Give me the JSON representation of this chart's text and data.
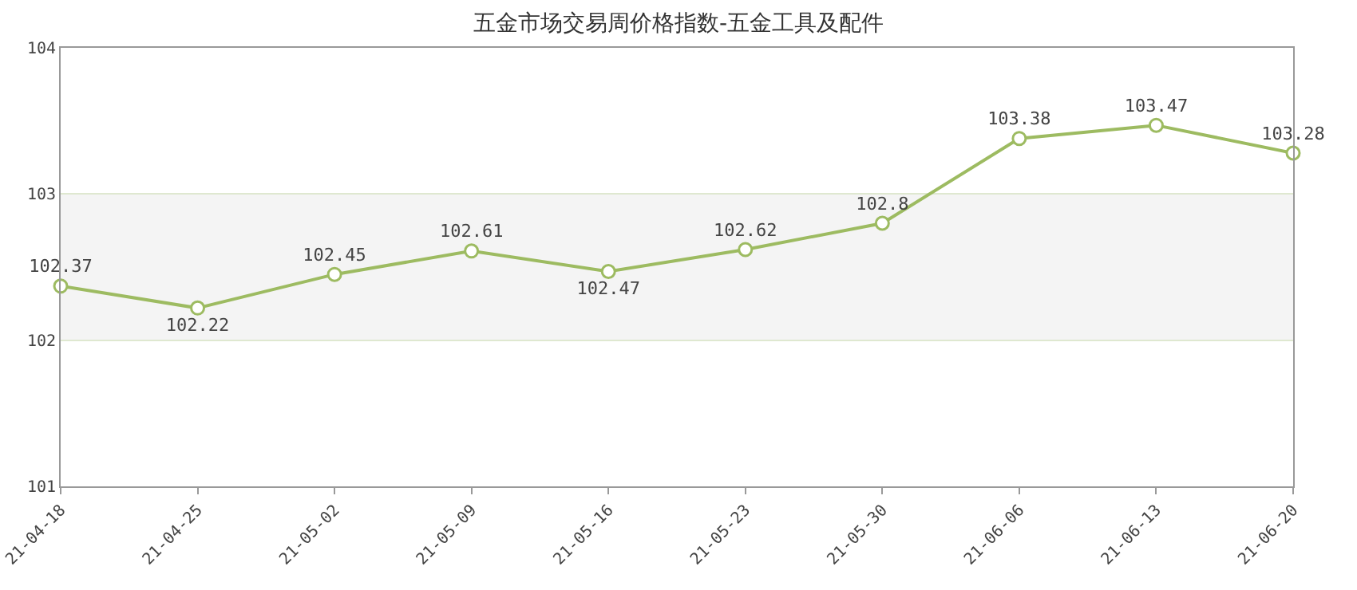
{
  "chart_data": {
    "type": "line",
    "title": "五金市场交易周价格指数-五金工具及配件",
    "categories": [
      "21-04-18",
      "21-04-25",
      "21-05-02",
      "21-05-09",
      "21-05-16",
      "21-05-23",
      "21-05-30",
      "21-06-06",
      "21-06-13",
      "21-06-20"
    ],
    "series": [
      {
        "color": "#9dbb61",
        "values": [
          102.37,
          102.22,
          102.45,
          102.61,
          102.47,
          102.62,
          102.8,
          103.38,
          103.47,
          103.28
        ]
      }
    ],
    "ylim": [
      101,
      104
    ],
    "yticks": [
      101,
      102,
      103,
      104
    ],
    "bands": [
      {
        "axis": "y",
        "from": 102,
        "to": 103,
        "color": "#f4f4f4"
      }
    ],
    "grid": "y",
    "legend": false,
    "marker": "circle",
    "line_style": "solid",
    "data_labels": true
  }
}
